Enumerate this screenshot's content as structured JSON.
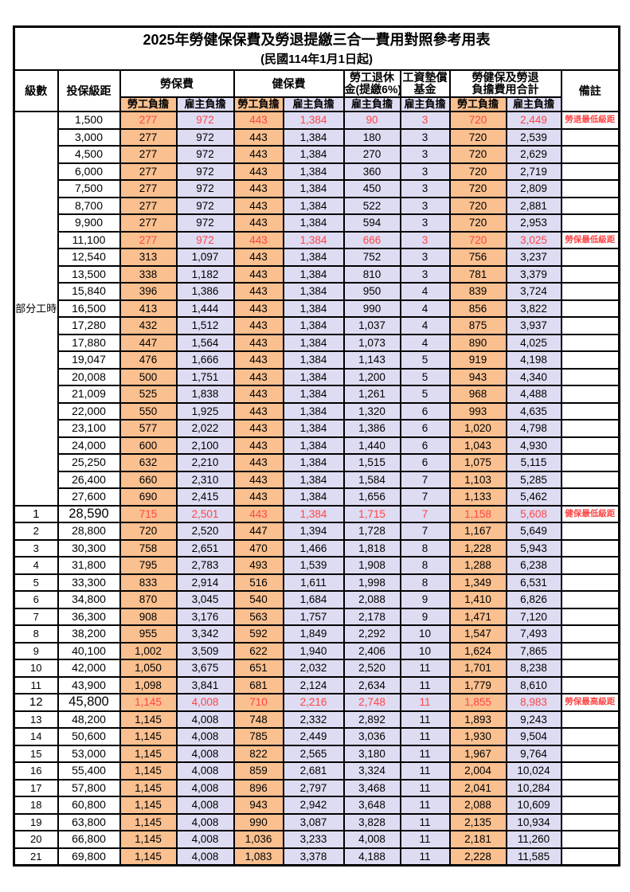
{
  "page": {
    "title": "2025年勞健保保費及勞退提繳三合一費用對照參考用表",
    "subtitle": "(民國114年1月1日起)"
  },
  "colors": {
    "employee_col_bg": "#FAC090",
    "employer_col_bg": "#DEDCF2",
    "highlight_text": "#FF4545",
    "border": "#000000"
  },
  "table": {
    "headers": {
      "level": "級數",
      "bracket": "投保級距",
      "labor_insurance": "勞保費",
      "health_insurance": "健保費",
      "pension_line1": "勞工退休",
      "pension_line2": "金(提繳6%)",
      "wage_fund_line1": "工資墊償",
      "wage_fund_line2": "基金",
      "total_line1": "勞健保及勞退",
      "total_line2": "負擔費用合計",
      "note": "備註"
    },
    "sub_headers": {
      "employee": "勞工負擔",
      "employer": "雇主負擔"
    },
    "part_time_label": "部分工時",
    "rows": [
      {
        "level": "",
        "bracket": "1,500",
        "labor_emp": "277",
        "labor_er": "972",
        "health_emp": "443",
        "health_er": "1,384",
        "pension": "90",
        "wage": "3",
        "total_emp": "720",
        "total_er": "2,449",
        "note": "勞退最低級距",
        "red": true,
        "emph": false
      },
      {
        "level": "",
        "bracket": "3,000",
        "labor_emp": "277",
        "labor_er": "972",
        "health_emp": "443",
        "health_er": "1,384",
        "pension": "180",
        "wage": "3",
        "total_emp": "720",
        "total_er": "2,539",
        "note": "",
        "red": false,
        "emph": false
      },
      {
        "level": "",
        "bracket": "4,500",
        "labor_emp": "277",
        "labor_er": "972",
        "health_emp": "443",
        "health_er": "1,384",
        "pension": "270",
        "wage": "3",
        "total_emp": "720",
        "total_er": "2,629",
        "note": "",
        "red": false,
        "emph": false
      },
      {
        "level": "",
        "bracket": "6,000",
        "labor_emp": "277",
        "labor_er": "972",
        "health_emp": "443",
        "health_er": "1,384",
        "pension": "360",
        "wage": "3",
        "total_emp": "720",
        "total_er": "2,719",
        "note": "",
        "red": false,
        "emph": false
      },
      {
        "level": "",
        "bracket": "7,500",
        "labor_emp": "277",
        "labor_er": "972",
        "health_emp": "443",
        "health_er": "1,384",
        "pension": "450",
        "wage": "3",
        "total_emp": "720",
        "total_er": "2,809",
        "note": "",
        "red": false,
        "emph": false
      },
      {
        "level": "",
        "bracket": "8,700",
        "labor_emp": "277",
        "labor_er": "972",
        "health_emp": "443",
        "health_er": "1,384",
        "pension": "522",
        "wage": "3",
        "total_emp": "720",
        "total_er": "2,881",
        "note": "",
        "red": false,
        "emph": false
      },
      {
        "level": "",
        "bracket": "9,900",
        "labor_emp": "277",
        "labor_er": "972",
        "health_emp": "443",
        "health_er": "1,384",
        "pension": "594",
        "wage": "3",
        "total_emp": "720",
        "total_er": "2,953",
        "note": "",
        "red": false,
        "emph": false
      },
      {
        "level": "",
        "bracket": "11,100",
        "labor_emp": "277",
        "labor_er": "972",
        "health_emp": "443",
        "health_er": "1,384",
        "pension": "666",
        "wage": "3",
        "total_emp": "720",
        "total_er": "3,025",
        "note": "勞保最低級距",
        "red": true,
        "emph": false
      },
      {
        "level": "",
        "bracket": "12,540",
        "labor_emp": "313",
        "labor_er": "1,097",
        "health_emp": "443",
        "health_er": "1,384",
        "pension": "752",
        "wage": "3",
        "total_emp": "756",
        "total_er": "3,237",
        "note": "",
        "red": false,
        "emph": false
      },
      {
        "level": "",
        "bracket": "13,500",
        "labor_emp": "338",
        "labor_er": "1,182",
        "health_emp": "443",
        "health_er": "1,384",
        "pension": "810",
        "wage": "3",
        "total_emp": "781",
        "total_er": "3,379",
        "note": "",
        "red": false,
        "emph": false
      },
      {
        "level": "",
        "bracket": "15,840",
        "labor_emp": "396",
        "labor_er": "1,386",
        "health_emp": "443",
        "health_er": "1,384",
        "pension": "950",
        "wage": "4",
        "total_emp": "839",
        "total_er": "3,724",
        "note": "",
        "red": false,
        "emph": false
      },
      {
        "level": "",
        "bracket": "16,500",
        "labor_emp": "413",
        "labor_er": "1,444",
        "health_emp": "443",
        "health_er": "1,384",
        "pension": "990",
        "wage": "4",
        "total_emp": "856",
        "total_er": "3,822",
        "note": "",
        "red": false,
        "emph": false
      },
      {
        "level": "",
        "bracket": "17,280",
        "labor_emp": "432",
        "labor_er": "1,512",
        "health_emp": "443",
        "health_er": "1,384",
        "pension": "1,037",
        "wage": "4",
        "total_emp": "875",
        "total_er": "3,937",
        "note": "",
        "red": false,
        "emph": false
      },
      {
        "level": "",
        "bracket": "17,880",
        "labor_emp": "447",
        "labor_er": "1,564",
        "health_emp": "443",
        "health_er": "1,384",
        "pension": "1,073",
        "wage": "4",
        "total_emp": "890",
        "total_er": "4,025",
        "note": "",
        "red": false,
        "emph": false
      },
      {
        "level": "",
        "bracket": "19,047",
        "labor_emp": "476",
        "labor_er": "1,666",
        "health_emp": "443",
        "health_er": "1,384",
        "pension": "1,143",
        "wage": "5",
        "total_emp": "919",
        "total_er": "4,198",
        "note": "",
        "red": false,
        "emph": false
      },
      {
        "level": "",
        "bracket": "20,008",
        "labor_emp": "500",
        "labor_er": "1,751",
        "health_emp": "443",
        "health_er": "1,384",
        "pension": "1,200",
        "wage": "5",
        "total_emp": "943",
        "total_er": "4,340",
        "note": "",
        "red": false,
        "emph": false
      },
      {
        "level": "",
        "bracket": "21,009",
        "labor_emp": "525",
        "labor_er": "1,838",
        "health_emp": "443",
        "health_er": "1,384",
        "pension": "1,261",
        "wage": "5",
        "total_emp": "968",
        "total_er": "4,488",
        "note": "",
        "red": false,
        "emph": false
      },
      {
        "level": "",
        "bracket": "22,000",
        "labor_emp": "550",
        "labor_er": "1,925",
        "health_emp": "443",
        "health_er": "1,384",
        "pension": "1,320",
        "wage": "6",
        "total_emp": "993",
        "total_er": "4,635",
        "note": "",
        "red": false,
        "emph": false
      },
      {
        "level": "",
        "bracket": "23,100",
        "labor_emp": "577",
        "labor_er": "2,022",
        "health_emp": "443",
        "health_er": "1,384",
        "pension": "1,386",
        "wage": "6",
        "total_emp": "1,020",
        "total_er": "4,798",
        "note": "",
        "red": false,
        "emph": false
      },
      {
        "level": "",
        "bracket": "24,000",
        "labor_emp": "600",
        "labor_er": "2,100",
        "health_emp": "443",
        "health_er": "1,384",
        "pension": "1,440",
        "wage": "6",
        "total_emp": "1,043",
        "total_er": "4,930",
        "note": "",
        "red": false,
        "emph": false
      },
      {
        "level": "",
        "bracket": "25,250",
        "labor_emp": "632",
        "labor_er": "2,210",
        "health_emp": "443",
        "health_er": "1,384",
        "pension": "1,515",
        "wage": "6",
        "total_emp": "1,075",
        "total_er": "5,115",
        "note": "",
        "red": false,
        "emph": false
      },
      {
        "level": "",
        "bracket": "26,400",
        "labor_emp": "660",
        "labor_er": "2,310",
        "health_emp": "443",
        "health_er": "1,384",
        "pension": "1,584",
        "wage": "7",
        "total_emp": "1,103",
        "total_er": "5,285",
        "note": "",
        "red": false,
        "emph": false
      },
      {
        "level": "",
        "bracket": "27,600",
        "labor_emp": "690",
        "labor_er": "2,415",
        "health_emp": "443",
        "health_er": "1,384",
        "pension": "1,656",
        "wage": "7",
        "total_emp": "1,133",
        "total_er": "5,462",
        "note": "",
        "red": false,
        "emph": false
      },
      {
        "level": "1",
        "bracket": "28,590",
        "labor_emp": "715",
        "labor_er": "2,501",
        "health_emp": "443",
        "health_er": "1,384",
        "pension": "1,715",
        "wage": "7",
        "total_emp": "1,158",
        "total_er": "5,608",
        "note": "健保最低級距",
        "red": true,
        "emph": true
      },
      {
        "level": "2",
        "bracket": "28,800",
        "labor_emp": "720",
        "labor_er": "2,520",
        "health_emp": "447",
        "health_er": "1,394",
        "pension": "1,728",
        "wage": "7",
        "total_emp": "1,167",
        "total_er": "5,649",
        "note": "",
        "red": false,
        "emph": false
      },
      {
        "level": "3",
        "bracket": "30,300",
        "labor_emp": "758",
        "labor_er": "2,651",
        "health_emp": "470",
        "health_er": "1,466",
        "pension": "1,818",
        "wage": "8",
        "total_emp": "1,228",
        "total_er": "5,943",
        "note": "",
        "red": false,
        "emph": false
      },
      {
        "level": "4",
        "bracket": "31,800",
        "labor_emp": "795",
        "labor_er": "2,783",
        "health_emp": "493",
        "health_er": "1,539",
        "pension": "1,908",
        "wage": "8",
        "total_emp": "1,288",
        "total_er": "6,238",
        "note": "",
        "red": false,
        "emph": false
      },
      {
        "level": "5",
        "bracket": "33,300",
        "labor_emp": "833",
        "labor_er": "2,914",
        "health_emp": "516",
        "health_er": "1,611",
        "pension": "1,998",
        "wage": "8",
        "total_emp": "1,349",
        "total_er": "6,531",
        "note": "",
        "red": false,
        "emph": false
      },
      {
        "level": "6",
        "bracket": "34,800",
        "labor_emp": "870",
        "labor_er": "3,045",
        "health_emp": "540",
        "health_er": "1,684",
        "pension": "2,088",
        "wage": "9",
        "total_emp": "1,410",
        "total_er": "6,826",
        "note": "",
        "red": false,
        "emph": false
      },
      {
        "level": "7",
        "bracket": "36,300",
        "labor_emp": "908",
        "labor_er": "3,176",
        "health_emp": "563",
        "health_er": "1,757",
        "pension": "2,178",
        "wage": "9",
        "total_emp": "1,471",
        "total_er": "7,120",
        "note": "",
        "red": false,
        "emph": false
      },
      {
        "level": "8",
        "bracket": "38,200",
        "labor_emp": "955",
        "labor_er": "3,342",
        "health_emp": "592",
        "health_er": "1,849",
        "pension": "2,292",
        "wage": "10",
        "total_emp": "1,547",
        "total_er": "7,493",
        "note": "",
        "red": false,
        "emph": false
      },
      {
        "level": "9",
        "bracket": "40,100",
        "labor_emp": "1,002",
        "labor_er": "3,509",
        "health_emp": "622",
        "health_er": "1,940",
        "pension": "2,406",
        "wage": "10",
        "total_emp": "1,624",
        "total_er": "7,865",
        "note": "",
        "red": false,
        "emph": false
      },
      {
        "level": "10",
        "bracket": "42,000",
        "labor_emp": "1,050",
        "labor_er": "3,675",
        "health_emp": "651",
        "health_er": "2,032",
        "pension": "2,520",
        "wage": "11",
        "total_emp": "1,701",
        "total_er": "8,238",
        "note": "",
        "red": false,
        "emph": false
      },
      {
        "level": "11",
        "bracket": "43,900",
        "labor_emp": "1,098",
        "labor_er": "3,841",
        "health_emp": "681",
        "health_er": "2,124",
        "pension": "2,634",
        "wage": "11",
        "total_emp": "1,779",
        "total_er": "8,610",
        "note": "",
        "red": false,
        "emph": false
      },
      {
        "level": "12",
        "bracket": "45,800",
        "labor_emp": "1,145",
        "labor_er": "4,008",
        "health_emp": "710",
        "health_er": "2,216",
        "pension": "2,748",
        "wage": "11",
        "total_emp": "1,855",
        "total_er": "8,983",
        "note": "勞保最高級距",
        "red": true,
        "emph": true
      },
      {
        "level": "13",
        "bracket": "48,200",
        "labor_emp": "1,145",
        "labor_er": "4,008",
        "health_emp": "748",
        "health_er": "2,332",
        "pension": "2,892",
        "wage": "11",
        "total_emp": "1,893",
        "total_er": "9,243",
        "note": "",
        "red": false,
        "emph": false
      },
      {
        "level": "14",
        "bracket": "50,600",
        "labor_emp": "1,145",
        "labor_er": "4,008",
        "health_emp": "785",
        "health_er": "2,449",
        "pension": "3,036",
        "wage": "11",
        "total_emp": "1,930",
        "total_er": "9,504",
        "note": "",
        "red": false,
        "emph": false
      },
      {
        "level": "15",
        "bracket": "53,000",
        "labor_emp": "1,145",
        "labor_er": "4,008",
        "health_emp": "822",
        "health_er": "2,565",
        "pension": "3,180",
        "wage": "11",
        "total_emp": "1,967",
        "total_er": "9,764",
        "note": "",
        "red": false,
        "emph": false
      },
      {
        "level": "16",
        "bracket": "55,400",
        "labor_emp": "1,145",
        "labor_er": "4,008",
        "health_emp": "859",
        "health_er": "2,681",
        "pension": "3,324",
        "wage": "11",
        "total_emp": "2,004",
        "total_er": "10,024",
        "note": "",
        "red": false,
        "emph": false
      },
      {
        "level": "17",
        "bracket": "57,800",
        "labor_emp": "1,145",
        "labor_er": "4,008",
        "health_emp": "896",
        "health_er": "2,797",
        "pension": "3,468",
        "wage": "11",
        "total_emp": "2,041",
        "total_er": "10,284",
        "note": "",
        "red": false,
        "emph": false
      },
      {
        "level": "18",
        "bracket": "60,800",
        "labor_emp": "1,145",
        "labor_er": "4,008",
        "health_emp": "943",
        "health_er": "2,942",
        "pension": "3,648",
        "wage": "11",
        "total_emp": "2,088",
        "total_er": "10,609",
        "note": "",
        "red": false,
        "emph": false
      },
      {
        "level": "19",
        "bracket": "63,800",
        "labor_emp": "1,145",
        "labor_er": "4,008",
        "health_emp": "990",
        "health_er": "3,087",
        "pension": "3,828",
        "wage": "11",
        "total_emp": "2,135",
        "total_er": "10,934",
        "note": "",
        "red": false,
        "emph": false
      },
      {
        "level": "20",
        "bracket": "66,800",
        "labor_emp": "1,145",
        "labor_er": "4,008",
        "health_emp": "1,036",
        "health_er": "3,233",
        "pension": "4,008",
        "wage": "11",
        "total_emp": "2,181",
        "total_er": "11,260",
        "note": "",
        "red": false,
        "emph": false
      },
      {
        "level": "21",
        "bracket": "69,800",
        "labor_emp": "1,145",
        "labor_er": "4,008",
        "health_emp": "1,083",
        "health_er": "3,378",
        "pension": "4,188",
        "wage": "11",
        "total_emp": "2,228",
        "total_er": "11,585",
        "note": "",
        "red": false,
        "emph": false
      }
    ]
  }
}
